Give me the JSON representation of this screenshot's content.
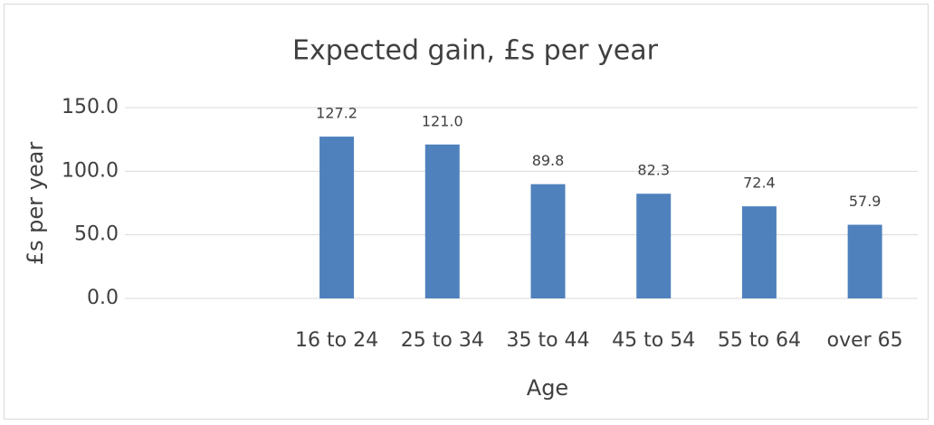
{
  "chart_data": {
    "type": "bar",
    "title": "Expected gain, £s per year",
    "x_label": "Age",
    "y_label": "£s per year",
    "categories": [
      null,
      "16 to 24",
      "25 to 34",
      "35 to 44",
      "45 to 54",
      "55 to 64",
      "over 65"
    ],
    "values": [
      null,
      127.2,
      121.0,
      89.8,
      82.3,
      72.4,
      57.9
    ],
    "value_labels": [
      null,
      "127.2",
      "121.0",
      "89.8",
      "82.3",
      "72.4",
      "57.9"
    ],
    "color": "#4f81bd",
    "ylim": [
      0,
      150
    ],
    "yticks": [
      {
        "value": 0,
        "label": "0.0"
      },
      {
        "value": 50,
        "label": "50.0"
      },
      {
        "value": 100,
        "label": "100.0"
      },
      {
        "value": 150,
        "label": "150.0"
      }
    ],
    "grid": true
  }
}
